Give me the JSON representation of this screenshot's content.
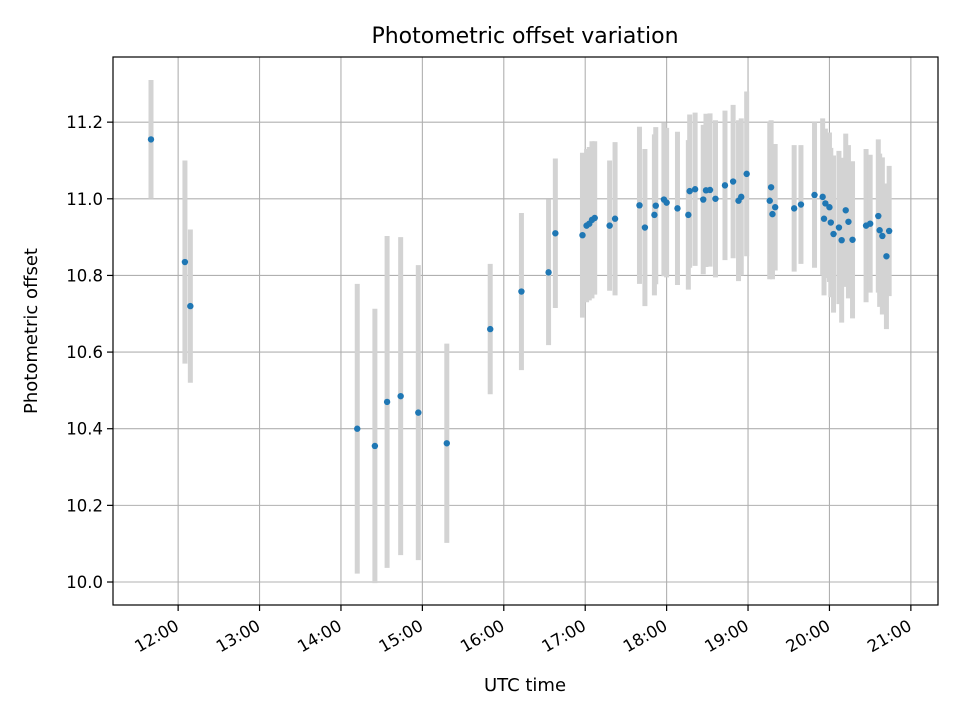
{
  "chart_data": {
    "type": "scatter",
    "title": "Photometric offset variation",
    "xlabel": "UTC time",
    "ylabel": "Photometric offset",
    "x_unit": "time (HH:MM UTC)",
    "xlim": [
      "11:12",
      "21:20"
    ],
    "ylim": [
      9.94,
      11.37
    ],
    "x_ticks": [
      "12:00",
      "13:00",
      "14:00",
      "15:00",
      "16:00",
      "17:00",
      "18:00",
      "19:00",
      "20:00",
      "21:00"
    ],
    "y_ticks": [
      10.0,
      10.2,
      10.4,
      10.6,
      10.8,
      11.0,
      11.2
    ],
    "y_tick_labels": [
      "10.0",
      "10.2",
      "10.4",
      "10.6",
      "10.8",
      "11.0",
      "11.2"
    ],
    "grid": true,
    "x_tick_rotation": "rotated 30 degrees",
    "marker_color": "#1f77b4",
    "errorbar_color": "#d3d3d3",
    "series": [
      {
        "x": [
          "11:40",
          "12:05",
          "12:09",
          "14:12",
          "14:25",
          "14:34",
          "14:44",
          "14:57",
          "15:18",
          "15:50",
          "16:13",
          "16:33",
          "16:38",
          "16:58",
          "17:01",
          "17:03",
          "17:05",
          "17:07",
          "17:18",
          "17:22",
          "17:40",
          "17:44",
          "17:51",
          "17:52",
          "17:58",
          "18:00",
          "18:08",
          "18:16",
          "18:17",
          "18:21",
          "18:27",
          "18:29",
          "18:32",
          "18:36",
          "18:43",
          "18:49",
          "18:53",
          "18:55",
          "18:59",
          "19:16",
          "19:17",
          "19:18",
          "19:20",
          "19:34",
          "19:39",
          "19:49",
          "19:55",
          "19:56",
          "19:57",
          "20:00",
          "20:01",
          "20:03",
          "20:07",
          "20:09",
          "20:12",
          "20:14",
          "20:17",
          "20:27",
          "20:30",
          "20:36",
          "20:37",
          "20:39",
          "20:42",
          "20:44"
        ],
        "y": [
          11.155,
          10.835,
          10.72,
          10.4,
          10.355,
          10.47,
          10.485,
          10.442,
          10.362,
          10.66,
          10.758,
          10.808,
          10.91,
          10.905,
          10.93,
          10.935,
          10.945,
          10.95,
          10.93,
          10.948,
          10.983,
          10.925,
          10.958,
          10.982,
          10.998,
          10.99,
          10.975,
          10.958,
          11.02,
          11.025,
          10.998,
          11.022,
          11.023,
          11.0,
          11.035,
          11.045,
          10.995,
          11.005,
          11.065,
          10.995,
          11.03,
          10.96,
          10.978,
          10.975,
          10.985,
          11.01,
          11.005,
          10.948,
          10.988,
          10.978,
          10.938,
          10.908,
          10.925,
          10.892,
          10.97,
          10.94,
          10.893,
          10.93,
          10.935,
          10.955,
          10.918,
          10.903,
          10.85,
          10.916
        ],
        "yerr": [
          0.155,
          0.265,
          0.2,
          0.378,
          0.358,
          0.433,
          0.415,
          0.385,
          0.26,
          0.17,
          0.205,
          0.19,
          0.195,
          0.215,
          0.2,
          0.2,
          0.205,
          0.2,
          0.17,
          0.2,
          0.205,
          0.205,
          0.21,
          0.205,
          0.2,
          0.195,
          0.2,
          0.195,
          0.2,
          0.2,
          0.195,
          0.2,
          0.2,
          0.205,
          0.195,
          0.2,
          0.21,
          0.205,
          0.215,
          0.205,
          0.175,
          0.17,
          0.165,
          0.165,
          0.155,
          0.19,
          0.205,
          0.2,
          0.195,
          0.195,
          0.195,
          0.205,
          0.2,
          0.215,
          0.2,
          0.2,
          0.205,
          0.2,
          0.18,
          0.2,
          0.2,
          0.205,
          0.19,
          0.17
        ]
      }
    ]
  }
}
